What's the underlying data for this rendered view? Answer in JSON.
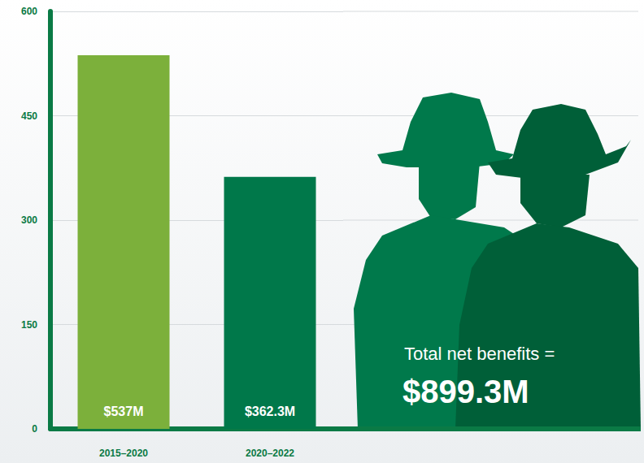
{
  "chart_data": {
    "type": "bar",
    "categories": [
      "2015–2020",
      "2020–2022"
    ],
    "values": [
      537,
      362.3
    ],
    "value_labels": [
      "$537M",
      "$362.3M"
    ],
    "colors": [
      "#7cb03b",
      "#00784a"
    ],
    "ylim": [
      0,
      600
    ],
    "yticks": [
      0,
      150,
      300,
      450,
      600
    ],
    "grid": true,
    "data_labels": true,
    "annotations": [
      "Total net benefits =",
      "$899.3M"
    ]
  }
}
